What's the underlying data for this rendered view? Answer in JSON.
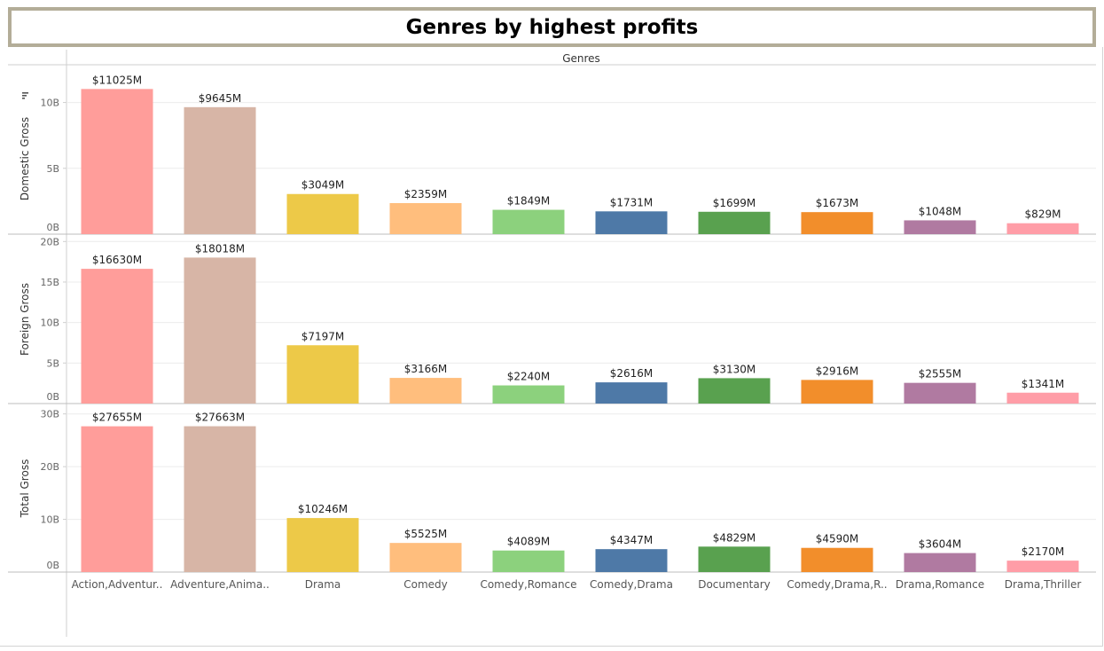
{
  "title": "Genres by highest profits",
  "chart_data": {
    "type": "bar",
    "header": "Genres",
    "categories": [
      "Action,Adventur..",
      "Adventure,Anima..",
      "Drama",
      "Comedy",
      "Comedy,Romance",
      "Comedy,Drama",
      "Documentary",
      "Comedy,Drama,R..",
      "Drama,Romance",
      "Drama,Thriller"
    ],
    "colors": [
      "#ff9d9a",
      "#d7b5a6",
      "#edc948",
      "#ffbe7d",
      "#8cd17d",
      "#4e79a7",
      "#59a14f",
      "#f28e2b",
      "#b07aa1",
      "#ff9da7"
    ],
    "panels": [
      {
        "name": "Domestic Gross",
        "values": [
          11025,
          9645,
          3049,
          2359,
          1849,
          1731,
          1699,
          1673,
          1048,
          829
        ],
        "labels": [
          "$11025M",
          "$9645M",
          "$3049M",
          "$2359M",
          "$1849M",
          "$1731M",
          "$1699M",
          "$1673M",
          "$1048M",
          "$829M"
        ],
        "ticks": [
          0,
          5000,
          10000
        ],
        "tick_labels": [
          "0B",
          "5B",
          "10B"
        ],
        "sort_icon": "sort-descending-icon"
      },
      {
        "name": "Foreign Gross",
        "values": [
          16630,
          18018,
          7197,
          3166,
          2240,
          2616,
          3130,
          2916,
          2555,
          1341
        ],
        "labels": [
          "$16630M",
          "$18018M",
          "$7197M",
          "$3166M",
          "$2240M",
          "$2616M",
          "$3130M",
          "$2916M",
          "$2555M",
          "$1341M"
        ],
        "ticks": [
          0,
          5000,
          10000,
          15000,
          20000
        ],
        "tick_labels": [
          "0B",
          "5B",
          "10B",
          "15B",
          "20B"
        ]
      },
      {
        "name": "Total Gross",
        "values": [
          27655,
          27663,
          10246,
          5525,
          4089,
          4347,
          4829,
          4590,
          3604,
          2170
        ],
        "labels": [
          "$27655M",
          "$27663M",
          "$10246M",
          "$5525M",
          "$4089M",
          "$4347M",
          "$4829M",
          "$4590M",
          "$3604M",
          "$2170M"
        ],
        "ticks": [
          0,
          10000,
          20000,
          30000
        ],
        "tick_labels": [
          "0B",
          "10B",
          "20B",
          "30B"
        ]
      }
    ],
    "grid": true
  }
}
